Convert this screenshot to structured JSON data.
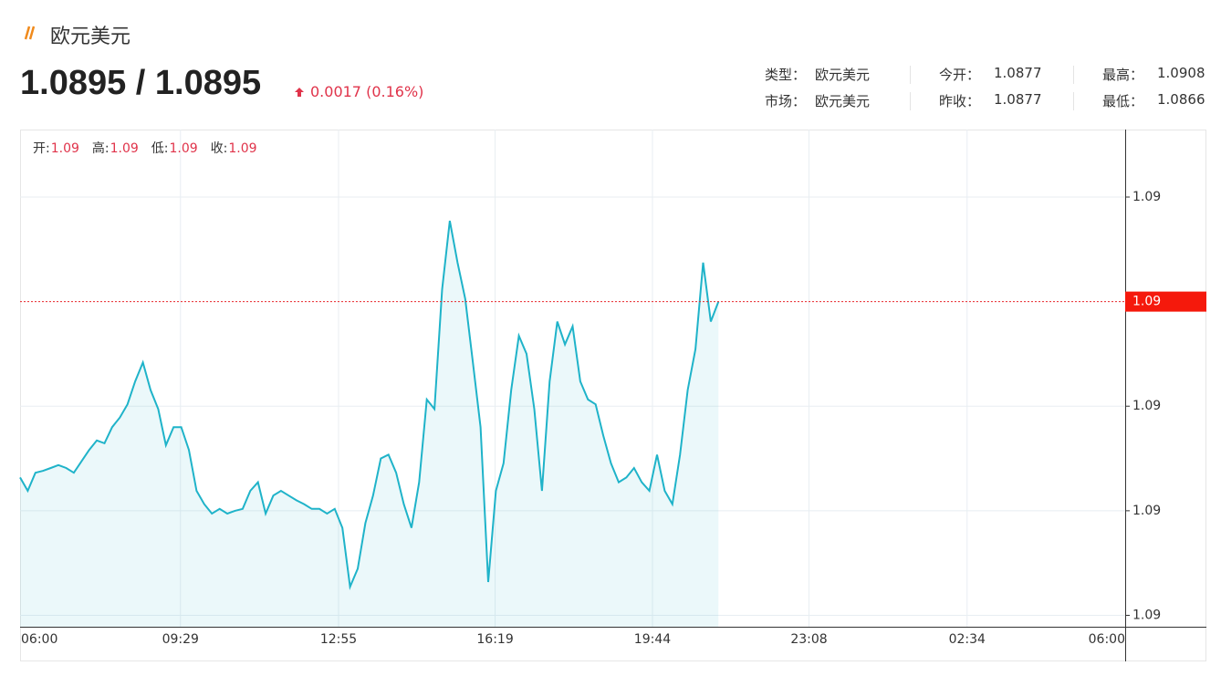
{
  "header": {
    "title": "欧元美元",
    "price": "1.0895 / 1.0895",
    "change": "0.0017 (0.16%)"
  },
  "info": [
    [
      {
        "label": "类型：",
        "value": "欧元美元"
      },
      {
        "label": "今开：",
        "value": "1.0877"
      },
      {
        "label": "最高：",
        "value": "1.0908"
      }
    ],
    [
      {
        "label": "市场：",
        "value": "欧元美元"
      },
      {
        "label": "昨收：",
        "value": "1.0877"
      },
      {
        "label": "最低：",
        "value": "1.0866"
      }
    ]
  ],
  "chart_data": {
    "type": "line",
    "ohlc": [
      {
        "label": "开:",
        "value": "1.09"
      },
      {
        "label": "高:",
        "value": "1.09"
      },
      {
        "label": "低:",
        "value": "1.09"
      },
      {
        "label": "收:",
        "value": "1.09"
      }
    ],
    "x": [
      "06:00",
      "06:10",
      "06:20",
      "06:30",
      "06:40",
      "06:50",
      "07:00",
      "07:10",
      "07:20",
      "07:30",
      "07:40",
      "07:50",
      "08:00",
      "08:10",
      "08:20",
      "08:30",
      "08:40",
      "08:50",
      "09:00",
      "09:10",
      "09:20",
      "09:30",
      "09:40",
      "09:50",
      "10:00",
      "10:10",
      "10:20",
      "10:30",
      "10:40",
      "10:50",
      "11:00",
      "11:10",
      "11:20",
      "11:30",
      "11:40",
      "11:50",
      "12:00",
      "12:10",
      "12:20",
      "12:30",
      "12:40",
      "12:50",
      "13:00",
      "13:10",
      "13:20",
      "13:30",
      "13:40",
      "13:50",
      "14:00",
      "14:10",
      "14:20",
      "14:30",
      "14:40",
      "14:50",
      "15:00",
      "15:10",
      "15:20",
      "15:30",
      "15:40",
      "15:50",
      "16:00",
      "16:10",
      "16:20",
      "16:30",
      "16:40",
      "16:50",
      "17:00",
      "17:10",
      "17:20",
      "17:30",
      "17:40",
      "17:50",
      "18:00",
      "18:10",
      "18:20",
      "18:30",
      "18:40",
      "18:50",
      "19:00",
      "19:10",
      "19:20",
      "19:30",
      "19:40",
      "19:50",
      "20:00",
      "20:10",
      "20:20",
      "20:30",
      "20:40",
      "20:50",
      "21:00",
      "21:10"
    ],
    "values": [
      1.08765,
      1.08751,
      1.0877,
      1.08772,
      1.08775,
      1.08778,
      1.08775,
      1.0877,
      1.08782,
      1.08794,
      1.08804,
      1.08801,
      1.08818,
      1.08828,
      1.08842,
      1.08866,
      1.08886,
      1.08857,
      1.08837,
      1.08799,
      1.08818,
      1.08818,
      1.08794,
      1.08751,
      1.08737,
      1.08727,
      1.08732,
      1.08727,
      1.0873,
      1.08732,
      1.08751,
      1.0876,
      1.08727,
      1.08746,
      1.08751,
      1.08746,
      1.08741,
      1.08737,
      1.08732,
      1.08732,
      1.08727,
      1.08732,
      1.08712,
      1.0865,
      1.08669,
      1.08717,
      1.08746,
      1.08785,
      1.08789,
      1.0877,
      1.08737,
      1.08712,
      1.0876,
      1.08847,
      1.08837,
      1.08963,
      1.09035,
      1.08991,
      1.08953,
      1.08886,
      1.08818,
      1.08655,
      1.08751,
      1.0878,
      1.08857,
      1.08914,
      1.08895,
      1.08837,
      1.08751,
      1.08866,
      1.08929,
      1.08905,
      1.08924,
      1.08866,
      1.08847,
      1.08842,
      1.08809,
      1.0878,
      1.0876,
      1.08765,
      1.08775,
      1.0876,
      1.08751,
      1.08789,
      1.08751,
      1.08737,
      1.08789,
      1.08857,
      1.089,
      1.08991,
      1.08929,
      1.0895
    ],
    "color": "#1fb3c9",
    "current": {
      "value": 1.0895,
      "label": "1.09"
    },
    "ylim": [
      1.08608,
      1.09131
    ],
    "yticks": [
      {
        "value": 1.0906,
        "label": "1.09"
      },
      {
        "value": 1.0884,
        "label": "1.09"
      },
      {
        "value": 1.0873,
        "label": "1.09"
      },
      {
        "value": 1.0862,
        "label": "1.09"
      }
    ],
    "xticks": [
      "06:00",
      "09:29",
      "12:55",
      "16:19",
      "19:44",
      "23:08",
      "02:34",
      "06:00"
    ],
    "grid": true
  }
}
